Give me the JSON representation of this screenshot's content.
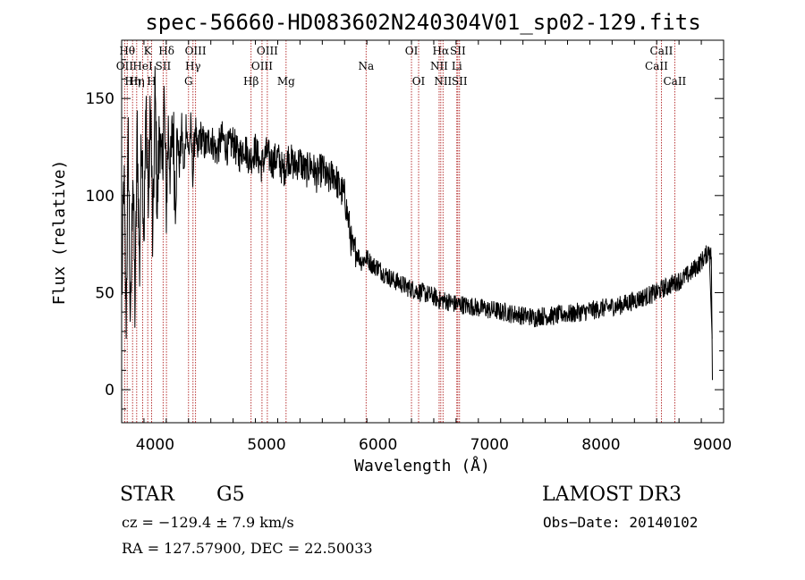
{
  "chart_data": {
    "type": "line",
    "title": "spec-56660-HD083602N240304V01_sp02-129.fits",
    "xlabel": "Wavelength (Å)",
    "ylabel": "Flux (relative)",
    "xlim": [
      3700,
      9100
    ],
    "ylim": [
      -17,
      180
    ],
    "xticks": [
      4000,
      5000,
      6000,
      7000,
      8000,
      9000
    ],
    "yticks": [
      0,
      50,
      100,
      150
    ],
    "grid": false,
    "series": [
      {
        "points": [
          [
            3700,
            40
          ],
          [
            3720,
            110
          ],
          [
            3740,
            35
          ],
          [
            3760,
            130
          ],
          [
            3780,
            25
          ],
          [
            3800,
            120
          ],
          [
            3820,
            40
          ],
          [
            3840,
            135
          ],
          [
            3860,
            60
          ],
          [
            3880,
            140
          ],
          [
            3900,
            80
          ],
          [
            3920,
            145
          ],
          [
            3940,
            95
          ],
          [
            3960,
            150
          ],
          [
            3980,
            70
          ],
          [
            4000,
            155
          ],
          [
            4020,
            90
          ],
          [
            4040,
            140
          ],
          [
            4060,
            105
          ],
          [
            4080,
            150
          ],
          [
            4100,
            95
          ],
          [
            4120,
            135
          ],
          [
            4140,
            110
          ],
          [
            4160,
            140
          ],
          [
            4180,
            100
          ],
          [
            4200,
            130
          ],
          [
            4220,
            115
          ],
          [
            4240,
            135
          ],
          [
            4260,
            110
          ],
          [
            4280,
            140
          ],
          [
            4300,
            120
          ],
          [
            4320,
            135
          ],
          [
            4340,
            110
          ],
          [
            4360,
            138
          ],
          [
            4380,
            118
          ],
          [
            4400,
            132
          ],
          [
            4450,
            125
          ],
          [
            4500,
            130
          ],
          [
            4550,
            122
          ],
          [
            4600,
            130
          ],
          [
            4650,
            124
          ],
          [
            4700,
            128
          ],
          [
            4750,
            120
          ],
          [
            4800,
            126
          ],
          [
            4850,
            118
          ],
          [
            4900,
            124
          ],
          [
            4950,
            115
          ],
          [
            5000,
            122
          ],
          [
            5050,
            117
          ],
          [
            5100,
            120
          ],
          [
            5150,
            112
          ],
          [
            5200,
            120
          ],
          [
            5250,
            115
          ],
          [
            5300,
            118
          ],
          [
            5350,
            112
          ],
          [
            5400,
            116
          ],
          [
            5450,
            110
          ],
          [
            5500,
            114
          ],
          [
            5550,
            107
          ],
          [
            5600,
            112
          ],
          [
            5650,
            104
          ],
          [
            5700,
            100
          ],
          [
            5720,
            92
          ],
          [
            5740,
            85
          ],
          [
            5760,
            76
          ],
          [
            5780,
            70
          ],
          [
            5800,
            72
          ],
          [
            5850,
            66
          ],
          [
            5900,
            68
          ],
          [
            5950,
            64
          ],
          [
            6000,
            63
          ],
          [
            6050,
            60
          ],
          [
            6100,
            58
          ],
          [
            6150,
            56
          ],
          [
            6200,
            55
          ],
          [
            6250,
            53
          ],
          [
            6300,
            52
          ],
          [
            6350,
            51
          ],
          [
            6400,
            50
          ],
          [
            6450,
            49
          ],
          [
            6500,
            48
          ],
          [
            6550,
            46
          ],
          [
            6600,
            46
          ],
          [
            6650,
            45
          ],
          [
            6700,
            44
          ],
          [
            6750,
            44
          ],
          [
            6800,
            43
          ],
          [
            6850,
            43
          ],
          [
            6900,
            42
          ],
          [
            6950,
            42
          ],
          [
            7000,
            41
          ],
          [
            7050,
            41
          ],
          [
            7100,
            40
          ],
          [
            7150,
            40
          ],
          [
            7200,
            39
          ],
          [
            7250,
            39
          ],
          [
            7300,
            38
          ],
          [
            7350,
            38
          ],
          [
            7400,
            37
          ],
          [
            7450,
            38
          ],
          [
            7500,
            38
          ],
          [
            7550,
            38
          ],
          [
            7600,
            38
          ],
          [
            7650,
            39
          ],
          [
            7700,
            39
          ],
          [
            7750,
            39
          ],
          [
            7800,
            40
          ],
          [
            7850,
            40
          ],
          [
            7900,
            41
          ],
          [
            7950,
            41
          ],
          [
            8000,
            42
          ],
          [
            8050,
            42
          ],
          [
            8100,
            43
          ],
          [
            8150,
            43
          ],
          [
            8200,
            44
          ],
          [
            8250,
            45
          ],
          [
            8300,
            46
          ],
          [
            8350,
            47
          ],
          [
            8400,
            48
          ],
          [
            8450,
            49
          ],
          [
            8500,
            50
          ],
          [
            8550,
            52
          ],
          [
            8600,
            53
          ],
          [
            8650,
            55
          ],
          [
            8700,
            56
          ],
          [
            8750,
            58
          ],
          [
            8800,
            60
          ],
          [
            8850,
            63
          ],
          [
            8900,
            66
          ],
          [
            8950,
            70
          ],
          [
            8970,
            73
          ],
          [
            8990,
            68
          ],
          [
            9000,
            5
          ]
        ]
      }
    ],
    "line_markers": [
      {
        "wave": 3727,
        "label": "OII",
        "row": 2
      },
      {
        "wave": 3750,
        "label": "Hθ",
        "row": 1
      },
      {
        "wave": 3798,
        "label": "Hη",
        "row": 3
      },
      {
        "wave": 3835,
        "label": "Hη",
        "row": 3
      },
      {
        "wave": 3889,
        "label": "HeI",
        "row": 2
      },
      {
        "wave": 3934,
        "label": "K",
        "row": 1
      },
      {
        "wave": 3969,
        "label": "H",
        "row": 3
      },
      {
        "wave": 4072,
        "label": "SII",
        "row": 2
      },
      {
        "wave": 4102,
        "label": "Hδ",
        "row": 1
      },
      {
        "wave": 4300,
        "label": "G",
        "row": 3
      },
      {
        "wave": 4340,
        "label": "Hγ",
        "row": 2
      },
      {
        "wave": 4363,
        "label": "OIII",
        "row": 1
      },
      {
        "wave": 4861,
        "label": "Hβ",
        "row": 3
      },
      {
        "wave": 4959,
        "label": "OIII",
        "row": 2
      },
      {
        "wave": 5007,
        "label": "OIII",
        "row": 1
      },
      {
        "wave": 5175,
        "label": "Mg",
        "row": 3
      },
      {
        "wave": 5893,
        "label": "Na",
        "row": 2
      },
      {
        "wave": 6300,
        "label": "OI",
        "row": 1
      },
      {
        "wave": 6364,
        "label": "OI",
        "row": 3
      },
      {
        "wave": 6548,
        "label": "NII",
        "row": 2
      },
      {
        "wave": 6563,
        "label": "Hα",
        "row": 1
      },
      {
        "wave": 6583,
        "label": "NII",
        "row": 3
      },
      {
        "wave": 6707,
        "label": "Li",
        "row": 2
      },
      {
        "wave": 6716,
        "label": "SII",
        "row": 1
      },
      {
        "wave": 6731,
        "label": "SII",
        "row": 3
      },
      {
        "wave": 8498,
        "label": "CaII",
        "row": 2
      },
      {
        "wave": 8542,
        "label": "CaII",
        "row": 1
      },
      {
        "wave": 8662,
        "label": "CaII",
        "row": 3
      }
    ]
  },
  "info": {
    "object_class": "STAR",
    "subclass": "G5",
    "survey": "LAMOST DR3",
    "cz": "cz = −129.4 ± 7.9 km/s",
    "obs_date": "Obs−Date: 20140102",
    "coords": "RA = 127.57900, DEC =  22.50033"
  },
  "colors": {
    "marker_line": "#b22222",
    "spectrum": "#000000"
  }
}
